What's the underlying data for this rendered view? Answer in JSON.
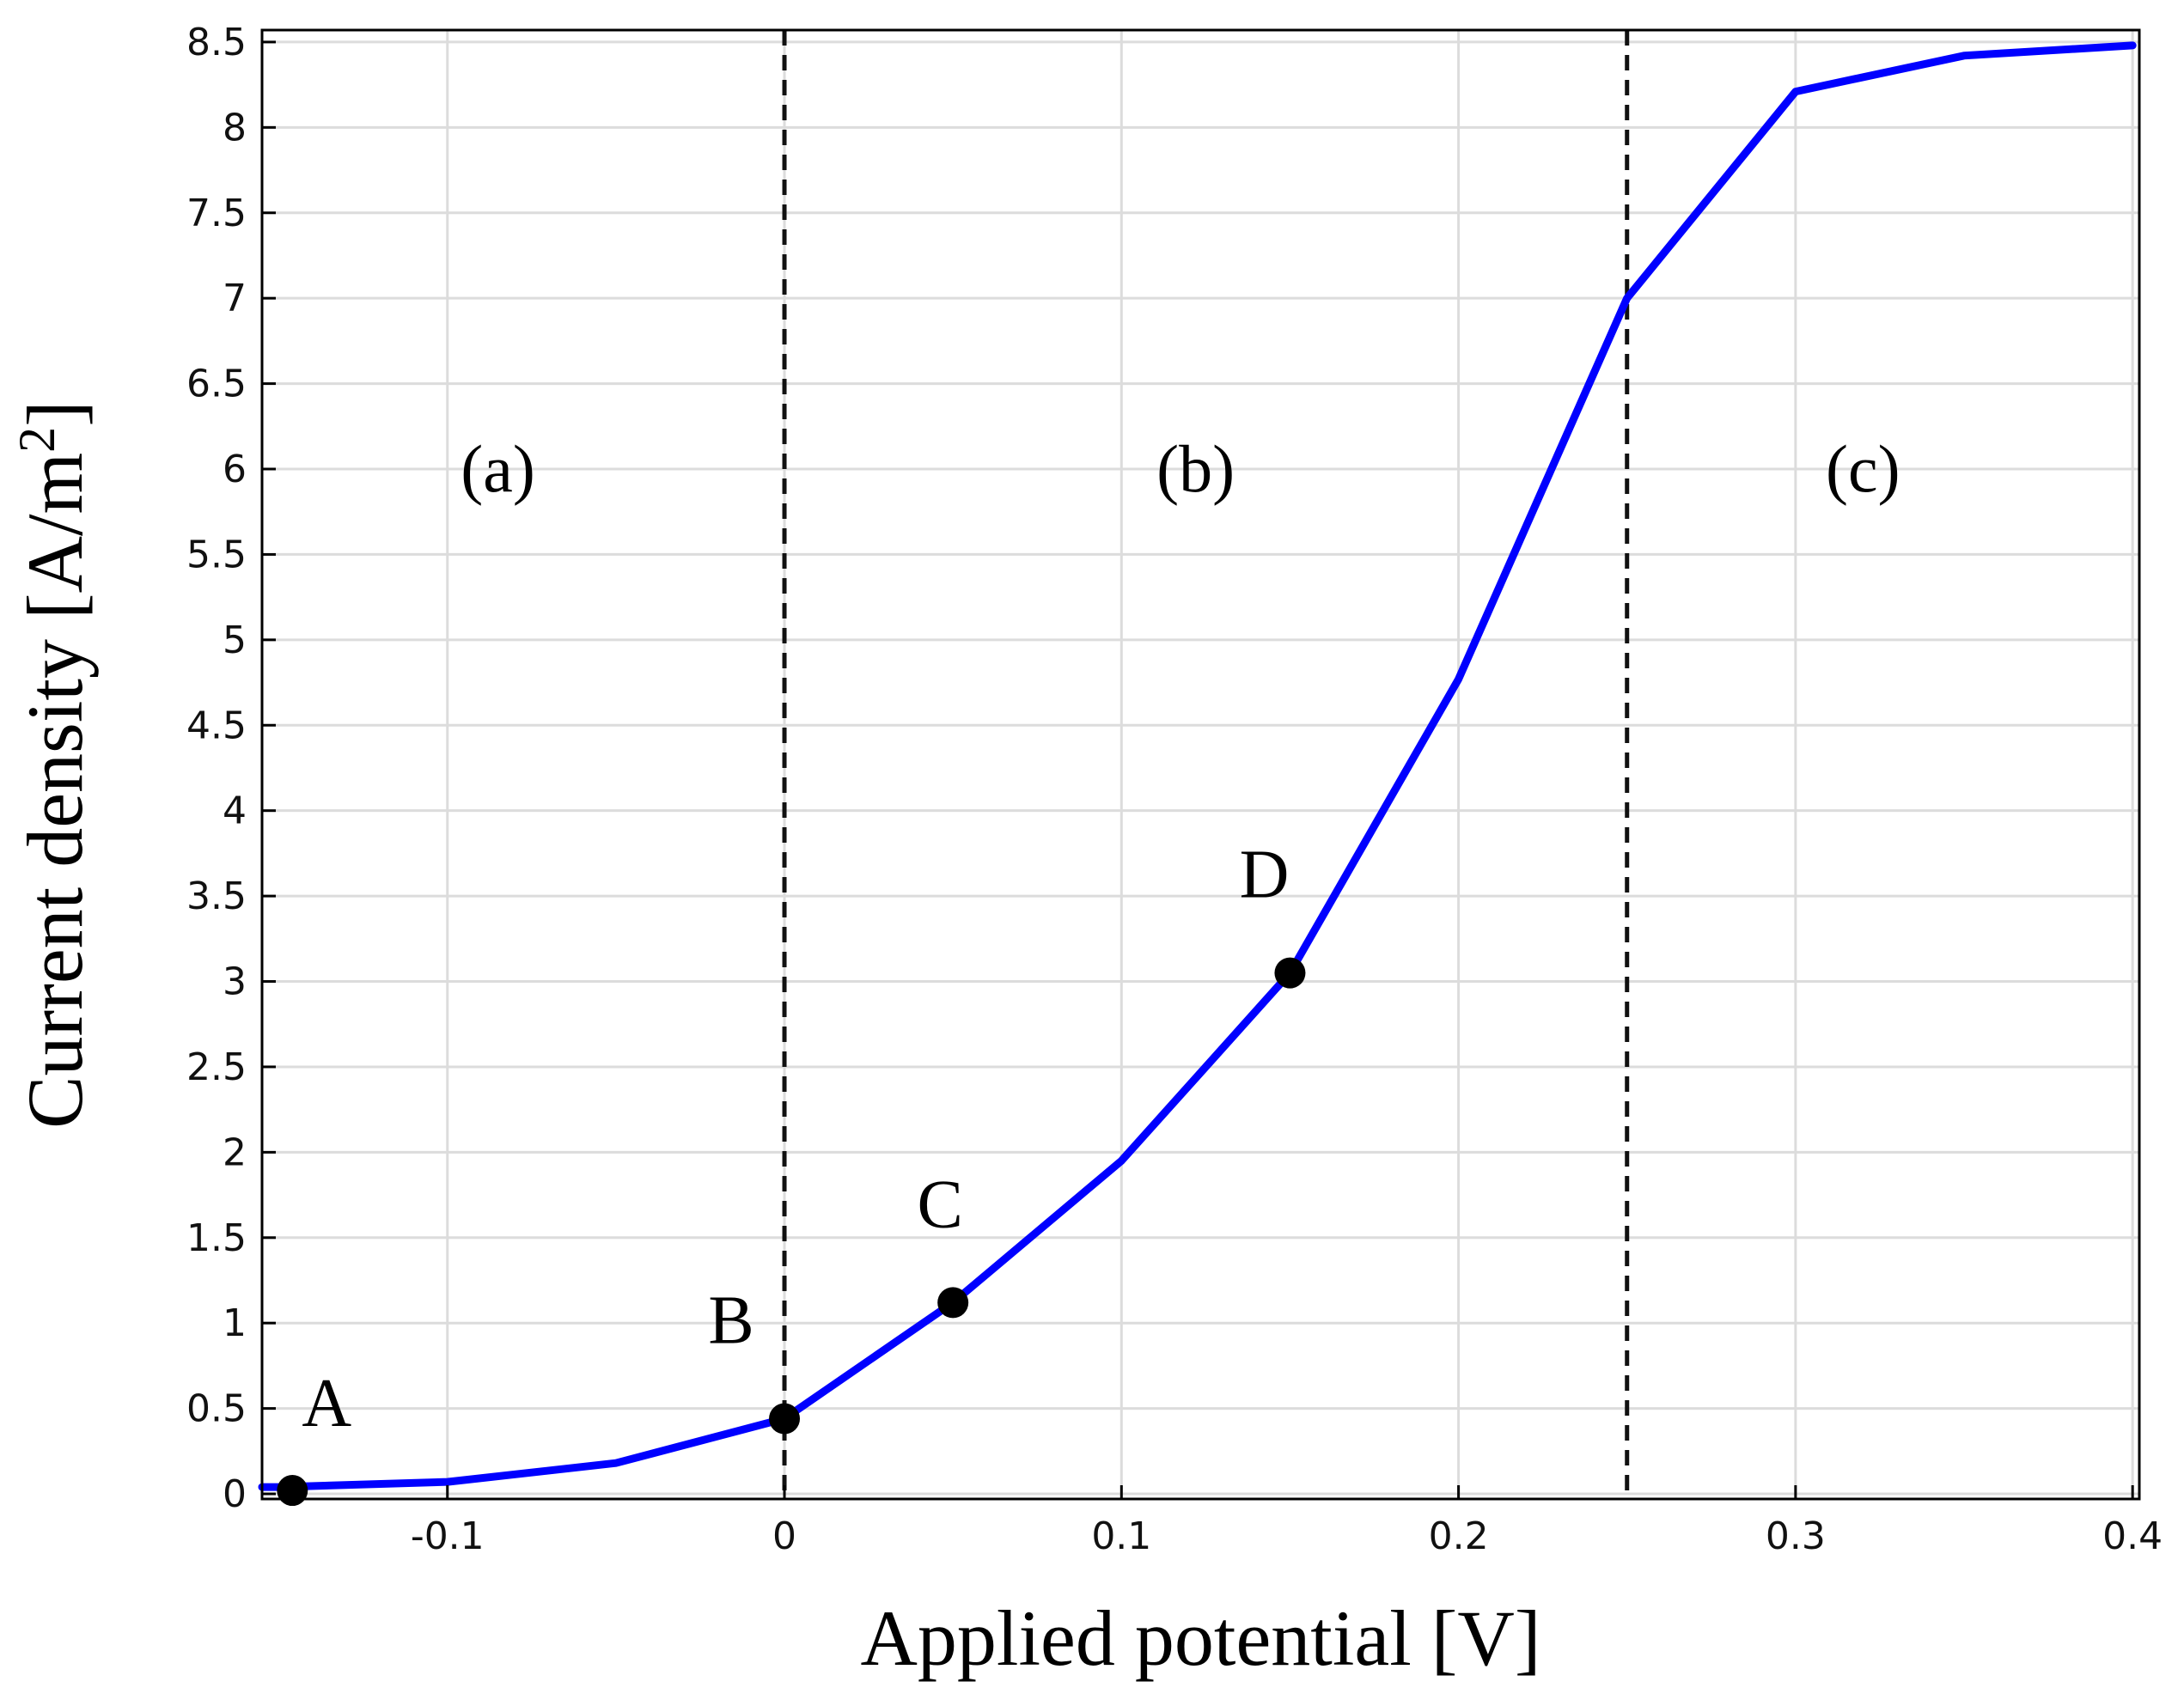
{
  "chart_data": {
    "type": "line",
    "title": "",
    "xlabel": "Applied potential [V]",
    "ylabel_main": "Current density [A/m",
    "ylabel_sup": "2",
    "ylabel_close": "]",
    "xlim": [
      -0.155,
      0.402
    ],
    "ylim": [
      -0.03,
      8.57
    ],
    "grid": true,
    "x_ticks": [
      -0.1,
      0,
      0.1,
      0.2,
      0.3,
      0.4
    ],
    "x_tick_labels": [
      "-0.1",
      "0",
      "0.1",
      "0.2",
      "0.3",
      "0.4"
    ],
    "y_ticks": [
      0,
      0.5,
      1,
      1.5,
      2,
      2.5,
      3,
      3.5,
      4,
      4.5,
      5,
      5.5,
      6,
      6.5,
      7,
      7.5,
      8,
      8.5
    ],
    "y_tick_labels": [
      "0",
      "0.5",
      "1",
      "1.5",
      "2",
      "2.5",
      "3",
      "3.5",
      "4",
      "4.5",
      "5",
      "5.5",
      "6",
      "6.5",
      "7",
      "7.5",
      "8",
      "8.5"
    ],
    "series": [
      {
        "color": "#0000ff",
        "x": [
          -0.155,
          -0.15,
          -0.1,
          -0.05,
          0.0,
          0.05,
          0.1,
          0.15,
          0.2,
          0.25,
          0.3,
          0.35,
          0.4
        ],
        "y": [
          0.04,
          0.04,
          0.07,
          0.18,
          0.44,
          1.12,
          1.95,
          3.05,
          4.77,
          7.0,
          8.21,
          8.42,
          8.48
        ]
      }
    ],
    "region_boundaries": [
      0.0,
      0.25
    ],
    "region_labels": [
      {
        "text": "(a)",
        "x": -0.085,
        "y": 6.0
      },
      {
        "text": "(b)",
        "x": 0.122,
        "y": 6.0
      },
      {
        "text": "(c)",
        "x": 0.32,
        "y": 6.0
      }
    ],
    "points": [
      {
        "label": "A",
        "x": -0.146,
        "y": 0.02
      },
      {
        "label": "B",
        "x": 0.0,
        "y": 0.44
      },
      {
        "label": "C",
        "x": 0.05,
        "y": 1.12
      },
      {
        "label": "D",
        "x": 0.15,
        "y": 3.05
      }
    ]
  }
}
